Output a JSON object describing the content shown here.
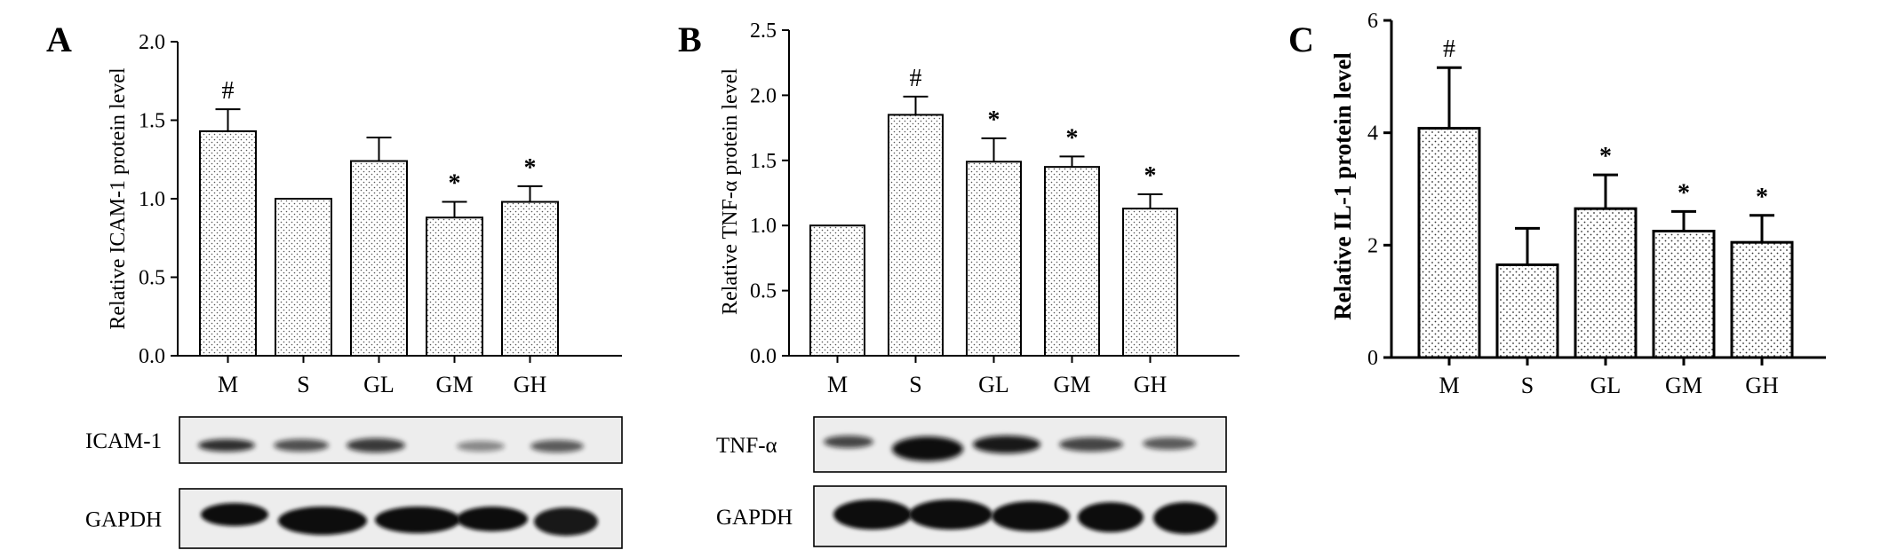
{
  "chart_data": [
    {
      "panel": "A",
      "type": "bar",
      "ylabel": "Relative ICAM-1 protein level",
      "categories": [
        "M",
        "S",
        "GL",
        "GM",
        "GH"
      ],
      "values": [
        1.43,
        1.0,
        1.24,
        0.88,
        0.98
      ],
      "errors": [
        0.14,
        0.0,
        0.15,
        0.1,
        0.1
      ],
      "annotations": [
        "#",
        "",
        "",
        "*",
        "*"
      ],
      "ylim": [
        0,
        2.0
      ],
      "yticks": [
        "0.0",
        "0.5",
        "1.0",
        "1.5",
        "2.0"
      ],
      "blots": [
        {
          "label": "ICAM-1"
        },
        {
          "label": "GAPDH"
        }
      ]
    },
    {
      "panel": "B",
      "type": "bar",
      "ylabel": "Relative TNF-α protein level",
      "categories": [
        "M",
        "S",
        "GL",
        "GM",
        "GH"
      ],
      "values": [
        1.0,
        1.85,
        1.49,
        1.45,
        1.13
      ],
      "errors": [
        0.0,
        0.14,
        0.18,
        0.08,
        0.11
      ],
      "annotations": [
        "",
        "#",
        "*",
        "*",
        "*"
      ],
      "ylim": [
        0,
        2.5
      ],
      "yticks": [
        "0.0",
        "0.5",
        "1.0",
        "1.5",
        "2.0",
        "2.5"
      ],
      "blots": [
        {
          "label": "TNF-α"
        },
        {
          "label": "GAPDH"
        }
      ]
    },
    {
      "panel": "C",
      "type": "bar",
      "ylabel": "Relative IL-1 protein level",
      "categories": [
        "M",
        "S",
        "GL",
        "GM",
        "GH"
      ],
      "values": [
        4.08,
        1.65,
        2.65,
        2.25,
        2.05
      ],
      "errors": [
        1.08,
        0.65,
        0.6,
        0.35,
        0.48
      ],
      "annotations": [
        "#",
        "",
        "*",
        "*",
        "*"
      ],
      "ylim": [
        0,
        6
      ],
      "yticks": [
        "0",
        "2",
        "4",
        "6"
      ]
    }
  ]
}
